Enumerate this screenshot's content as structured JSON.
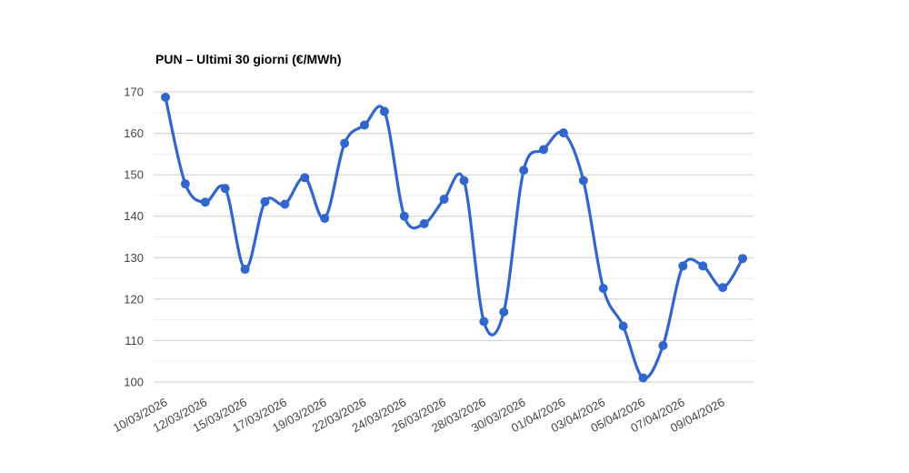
{
  "chart_data": {
    "type": "line",
    "title": "PUN – Ultimi 30 giorni (€/MWh)",
    "unit": "€/MWh",
    "legend": "none",
    "grid": true,
    "smooth": true,
    "ylim": [
      100,
      170
    ],
    "y_major_ticks": [
      100,
      110,
      120,
      130,
      140,
      150,
      160,
      170
    ],
    "y_minor_ticks": [
      105,
      115,
      125,
      135,
      145,
      155,
      165
    ],
    "x_tick_labels": [
      "10/03/2026",
      "12/03/2026",
      "15/03/2026",
      "17/03/2026",
      "19/03/2026",
      "22/03/2026",
      "24/03/2026",
      "26/03/2026",
      "28/03/2026",
      "30/03/2026",
      "01/04/2026",
      "03/04/2026",
      "05/04/2026",
      "07/04/2026",
      "09/04/2026"
    ],
    "x_tick_point_indices": [
      0,
      2,
      4,
      6,
      8,
      10,
      12,
      14,
      16,
      18,
      20,
      22,
      24,
      26,
      28
    ],
    "values": [
      168.7,
      147.8,
      143.4,
      146.7,
      127.2,
      143.5,
      142.9,
      149.3,
      139.5,
      157.6,
      162.0,
      165.3,
      140.0,
      138.2,
      144.1,
      148.6,
      114.6,
      116.9,
      151.1,
      156.1,
      160.1,
      148.6,
      122.6,
      113.5,
      101.0,
      108.8,
      128.0,
      128.0,
      122.8,
      129.8
    ],
    "colors": {
      "series": "#3366cc",
      "major_grid": "#cccccc",
      "minor_grid": "#ebebeb",
      "axis_text": "#444444",
      "title": "#000000",
      "background": "#ffffff"
    }
  }
}
